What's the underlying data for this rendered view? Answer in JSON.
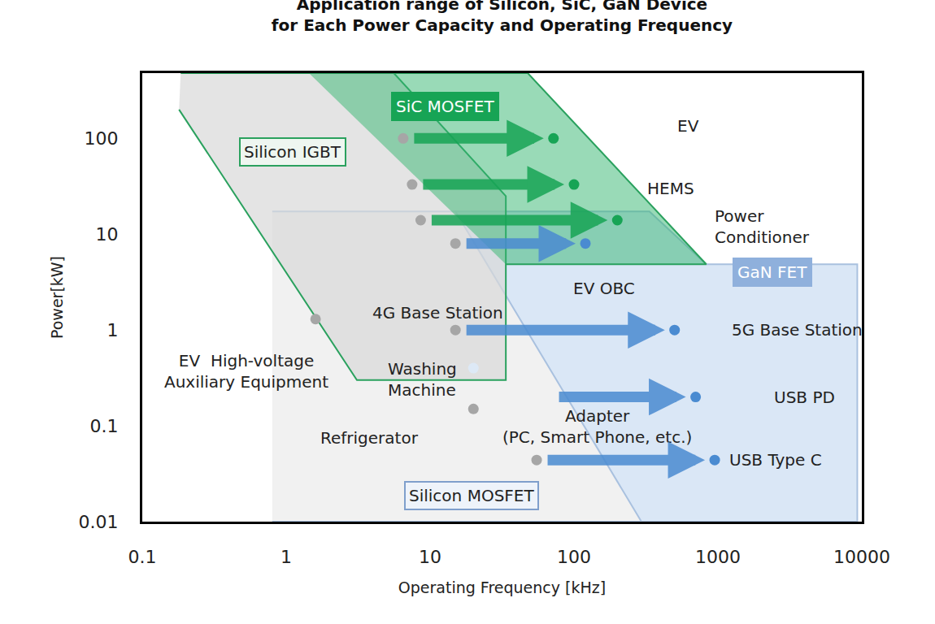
{
  "chart_data": {
    "type": "scatter",
    "title": [
      "Application range of Silicon, SiC, GaN Device",
      "for Each Power Capacity and Operating Frequency"
    ],
    "x_label": "Operating Frequency [kHz]",
    "y_label": "Power[kW]",
    "log": true,
    "grid": false,
    "xlim": [
      0.1,
      10000
    ],
    "xticks": [
      0.1,
      1,
      10,
      100,
      1000,
      10000
    ],
    "ylim": [
      0.01,
      480
    ],
    "yticks": [
      0.01,
      0.1,
      1,
      10,
      100
    ],
    "regions": [
      {
        "name": "GaN FET",
        "color": "#d3e3f5",
        "x": [
          15,
          334,
          830,
          9300,
          9300,
          294
        ],
        "y": [
          17.3,
          17.3,
          4.86,
          4.86,
          0.01,
          0.01
        ]
      },
      {
        "name": "Silicon MOSFET",
        "color": "#efefef",
        "x": [
          0.8,
          15,
          294,
          0.8
        ],
        "y": [
          17.3,
          17.3,
          0.01,
          0.01
        ]
      },
      {
        "name": "Silicon IGBT",
        "color": "#d9d9d9",
        "x": [
          0.185,
          5.6,
          33.6,
          33.6,
          3.1,
          0.18
        ],
        "y": [
          480,
          480,
          25,
          0.3,
          0.3,
          200
        ]
      },
      {
        "name": "SiC MOSFET",
        "color": "#33b56f",
        "x": [
          1.44,
          47.7,
          830,
          33.6
        ],
        "y": [
          480,
          480,
          4.86,
          4.86
        ]
      }
    ],
    "applications": [
      {
        "labels": [
          "EV"
        ],
        "power": 100,
        "from": 6.5,
        "to": 72,
        "color": "#17a455"
      },
      {
        "labels": [
          "HEMS"
        ],
        "power": 33,
        "from": 7.5,
        "to": 100,
        "color": "#17a455"
      },
      {
        "labels": [
          "Power\nConditioner"
        ],
        "power": 14,
        "from": 8.6,
        "to": 200,
        "color": "#17a455"
      },
      {
        "labels": [
          "EV OBC"
        ],
        "power": 8,
        "from": 15,
        "to": 120,
        "color": "#4a8bd1"
      },
      {
        "labels": [
          "4G Base Station",
          "5G Base Station"
        ],
        "power": 1,
        "from": 15,
        "to": 500,
        "color": "#4a8bd1"
      },
      {
        "labels": [
          "Washing\nMachine"
        ],
        "power": 0.4,
        "from": 20,
        "to": null,
        "color": "#dde9f6"
      },
      {
        "labels": [
          "Refrigerator"
        ],
        "power": 0.15,
        "from": 20,
        "to": null,
        "color": "#a6a6a6"
      },
      {
        "labels": [
          "EV  High-voltage\nAuxiliary Equipment"
        ],
        "power": 1.3,
        "from": 1.6,
        "to": null,
        "color": "#a6a6a6"
      },
      {
        "labels": [
          "Adapter\n(PC, Smart Phone, etc.)",
          "USB PD"
        ],
        "power": 0.2,
        "from": 66,
        "to": 700,
        "color": "#4a8bd1",
        "marker": "none"
      },
      {
        "labels": [
          "USB Type C"
        ],
        "power": 0.044,
        "from": 55,
        "to": 950,
        "color": "#4a8bd1"
      }
    ]
  }
}
